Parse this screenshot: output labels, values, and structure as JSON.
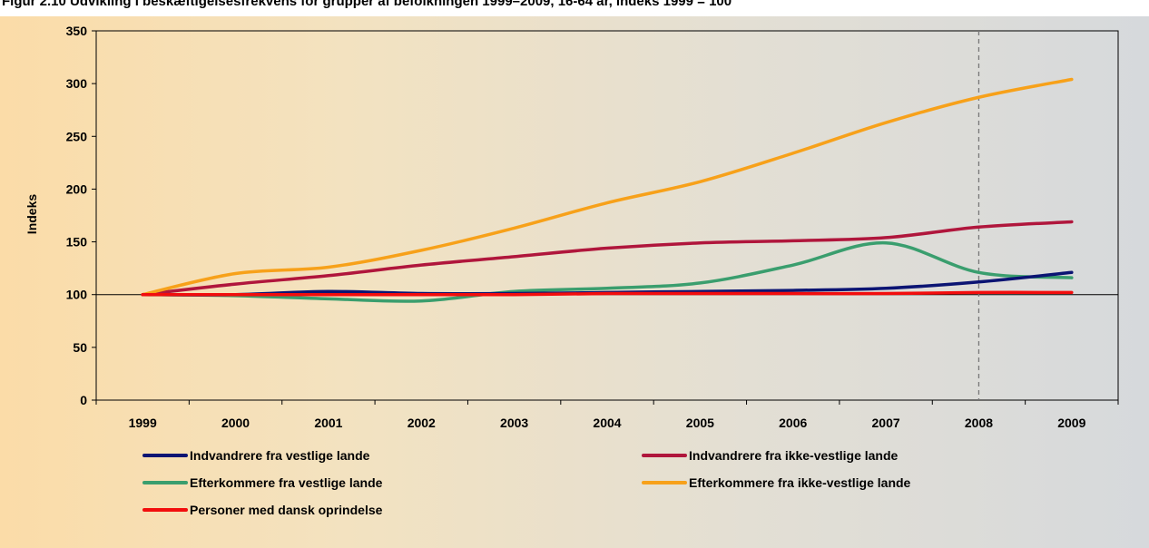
{
  "chart_data": {
    "type": "line",
    "caption": "Figur 2.10 Udvikling i beskæftigelsesfrekvens for grupper af befolkningen 1999–2009, 16-64 år, indeks 1999 = 100",
    "xlabel": "",
    "ylabel": "Indeks",
    "x": [
      "1999",
      "2000",
      "2001",
      "2002",
      "2003",
      "2004",
      "2005",
      "2006",
      "2007",
      "2008",
      "2009"
    ],
    "ylim": [
      0,
      350
    ],
    "yticks": [
      0,
      50,
      100,
      150,
      200,
      250,
      300,
      350
    ],
    "reference_line": 100,
    "vertical_marker": "2008",
    "grid": false,
    "legend_position": "bottom",
    "series": [
      {
        "name": "Indvandrere fra vestlige lande",
        "color": "#0b1473",
        "values": [
          100,
          100,
          103,
          101,
          101,
          102,
          103,
          104,
          106,
          112,
          121
        ]
      },
      {
        "name": "Indvandrere fra ikke-vestlige lande",
        "color": "#b0163c",
        "values": [
          100,
          110,
          118,
          128,
          136,
          144,
          149,
          151,
          154,
          164,
          169
        ]
      },
      {
        "name": "Efterkommere fra vestlige lande",
        "color": "#3a9e6e",
        "values": [
          100,
          99,
          96,
          94,
          103,
          106,
          111,
          128,
          149,
          121,
          116
        ]
      },
      {
        "name": "Efterkommere fra ikke-vestlige lande",
        "color": "#f7a11a",
        "values": [
          100,
          120,
          126,
          142,
          163,
          187,
          207,
          234,
          263,
          287,
          304
        ]
      },
      {
        "name": "Personer med dansk oprindelse",
        "color": "#f20d0d",
        "values": [
          100,
          100,
          100,
          100,
          100,
          101,
          101,
          101,
          101,
          102,
          102
        ]
      }
    ]
  }
}
